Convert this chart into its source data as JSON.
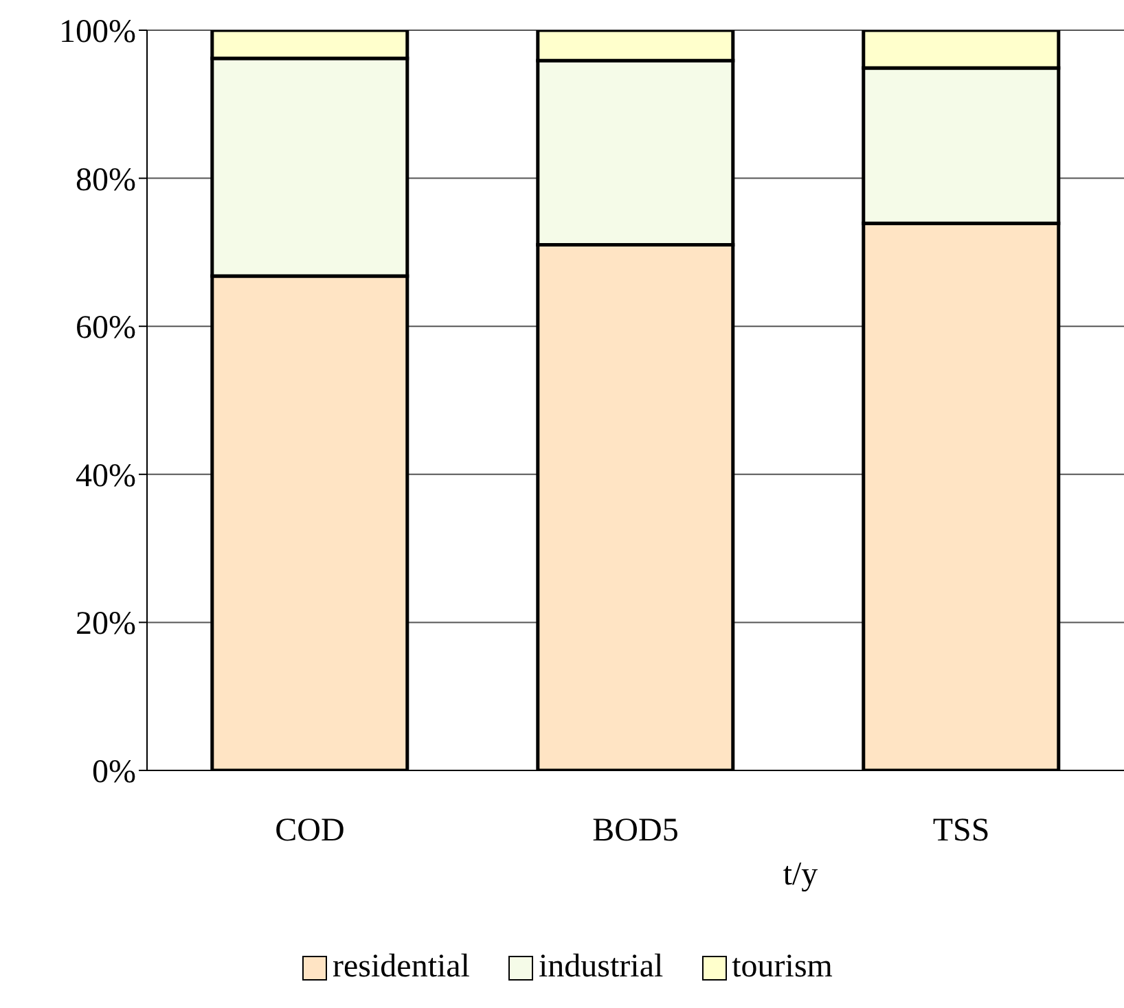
{
  "chart_data": {
    "type": "bar",
    "stacked": true,
    "xlabel": "t/y",
    "categories": [
      "COD",
      "BOD5",
      "TSS"
    ],
    "series": [
      {
        "name": "residential",
        "color": "#ffe4c4",
        "values": [
          66.8,
          71.0,
          73.9
        ]
      },
      {
        "name": "industrial",
        "color": "#f5fbe8",
        "values": [
          29.4,
          24.9,
          21.0
        ]
      },
      {
        "name": "tourism",
        "color": "#ffffcc",
        "values": [
          3.8,
          4.1,
          5.1
        ]
      }
    ],
    "ylim": [
      0,
      100
    ],
    "yticks": [
      {
        "value": 0,
        "label": "0%"
      },
      {
        "value": 20,
        "label": "20%"
      },
      {
        "value": 40,
        "label": "40%"
      },
      {
        "value": 60,
        "label": "60%"
      },
      {
        "value": 80,
        "label": "80%"
      },
      {
        "value": 100,
        "label": "100%"
      }
    ],
    "grid": "y",
    "legend": "bottom"
  }
}
